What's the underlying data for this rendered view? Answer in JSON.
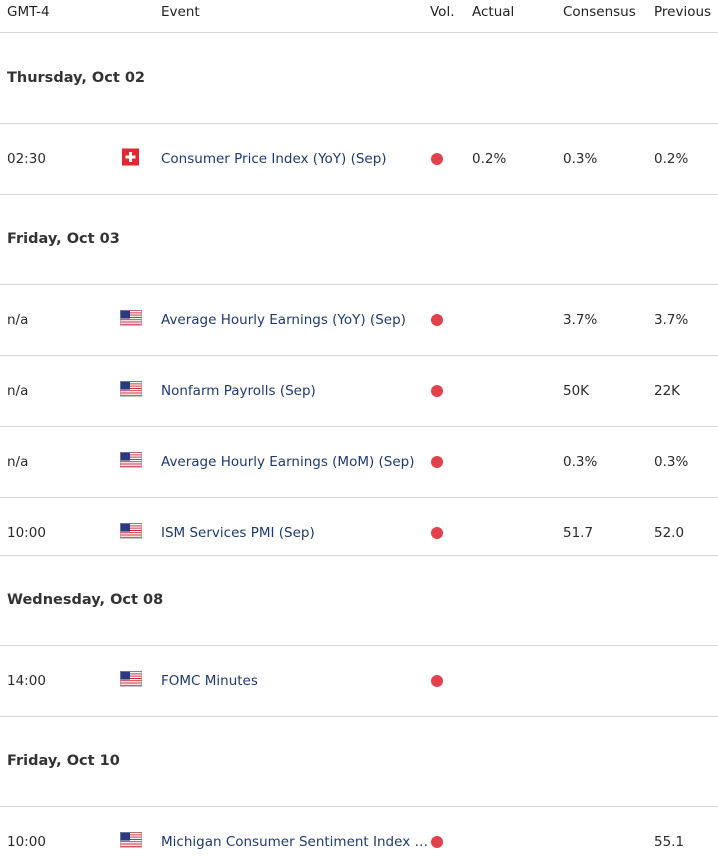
{
  "header": {
    "time": "GMT-4",
    "event": "Event",
    "vol": "Vol.",
    "actual": "Actual",
    "consensus": "Consensus",
    "previous": "Previous"
  },
  "days": [
    {
      "date": "Thursday, Oct 02",
      "events": [
        {
          "time": "02:30",
          "event": "Consumer Price Index (YoY) (Sep)",
          "actual": "0.2%",
          "consensus": "0.3%",
          "previous": "0.2%"
        }
      ]
    },
    {
      "date": "Friday, Oct 03",
      "events": [
        {
          "time": "n/a",
          "event": "Average Hourly Earnings (YoY) (Sep)",
          "consensus": "3.7%",
          "previous": "3.7%"
        },
        {
          "time": "n/a",
          "event": "Nonfarm Payrolls (Sep)",
          "consensus": "50K",
          "previous": "22K"
        },
        {
          "time": "n/a",
          "event": "Average Hourly Earnings (MoM) (Sep)",
          "consensus": "0.3%",
          "previous": "0.3%"
        },
        {
          "time": "10:00",
          "event": "ISM Services PMI (Sep)",
          "consensus": "51.7",
          "previous": "52.0"
        }
      ]
    },
    {
      "date": "Wednesday, Oct 08",
      "events": [
        {
          "time": "14:00",
          "event": "FOMC Minutes"
        }
      ]
    },
    {
      "date": "Friday, Oct 10",
      "events": [
        {
          "time": "10:00",
          "event": "Michigan Consumer Sentiment Index …",
          "previous": "55.1"
        }
      ]
    }
  ]
}
